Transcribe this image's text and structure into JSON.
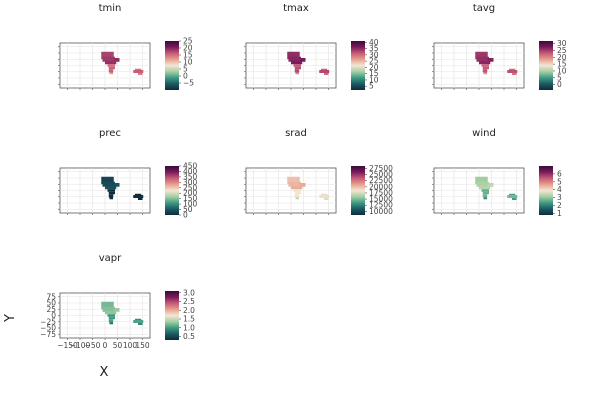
{
  "chart_data": {
    "type": "heatmap",
    "layout": {
      "columns": 3,
      "rows": 3
    },
    "axes": {
      "xlabel": "X",
      "ylabel": "Y",
      "xticks": [
        -150,
        -100,
        -50,
        0,
        50,
        100,
        150
      ],
      "yticks": [
        75,
        50,
        25,
        0,
        -25,
        -50,
        -75
      ],
      "xlim": [
        -180,
        180
      ],
      "ylim": [
        -90,
        90
      ],
      "grid": true,
      "tick_labels_shown_on": "vapr"
    },
    "colormap": [
      "#0e2a3b",
      "#1c5a62",
      "#3f9b84",
      "#a6cfa2",
      "#f3e6d6",
      "#e7a08a",
      "#c65a78",
      "#7a1b5a",
      "#3c0a3a"
    ],
    "panels": [
      {
        "name": "tmin",
        "title": "tmin",
        "colorbar": {
          "min": -10,
          "max": 25,
          "ticks": [
            25,
            20,
            15,
            10,
            5,
            0,
            -5
          ]
        },
        "land_level": 0.78
      },
      {
        "name": "tmax",
        "title": "tmax",
        "colorbar": {
          "min": 2,
          "max": 41,
          "ticks": [
            40,
            35,
            30,
            25,
            20,
            15,
            10,
            5
          ]
        },
        "land_level": 0.82
      },
      {
        "name": "tavg",
        "title": "tavg",
        "colorbar": {
          "min": -4,
          "max": 32,
          "ticks": [
            30,
            25,
            20,
            15,
            10,
            5,
            0
          ]
        },
        "land_level": 0.8
      },
      {
        "name": "prec",
        "title": "prec",
        "colorbar": {
          "min": 0,
          "max": 450,
          "ticks": [
            450,
            400,
            350,
            300,
            250,
            200,
            150,
            100,
            50,
            0
          ]
        },
        "land_level": 0.05
      },
      {
        "name": "srad",
        "title": "srad",
        "colorbar": {
          "min": 8500,
          "max": 28500,
          "ticks": [
            27500,
            25000,
            22500,
            20000,
            17500,
            15000,
            12500,
            10000
          ]
        },
        "land_level": 0.55
      },
      {
        "name": "wind",
        "title": "wind",
        "colorbar": {
          "min": 0.8,
          "max": 7,
          "ticks": [
            6,
            5,
            4,
            3,
            2,
            1
          ]
        },
        "land_level": 0.35
      },
      {
        "name": "vapr",
        "title": "vapr",
        "colorbar": {
          "min": 0.3,
          "max": 3.1,
          "ticks": [
            3.0,
            2.5,
            2.0,
            1.5,
            1.0,
            0.5
          ]
        },
        "land_level": 0.3
      }
    ]
  }
}
